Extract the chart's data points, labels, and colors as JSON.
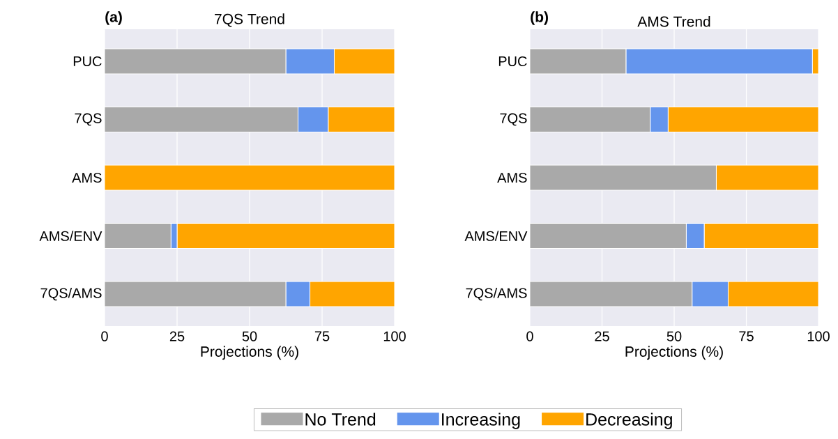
{
  "chart_data": [
    {
      "type": "bar",
      "orientation": "horizontal",
      "stacked": true,
      "title": "7QS Trend",
      "xlabel": "Projections (%)",
      "annotations": [
        "(a)"
      ],
      "categories": [
        "PUC",
        "7QS",
        "AMS",
        "AMS/ENV",
        "7QS/AMS"
      ],
      "series": [
        {
          "name": "No Trend",
          "color": "#a9a9a9",
          "values": [
            62.5,
            66.7,
            0,
            22.9,
            62.5
          ]
        },
        {
          "name": "Increasing",
          "color": "#6495ed",
          "values": [
            16.7,
            10.4,
            0,
            2.1,
            8.3
          ]
        },
        {
          "name": "Decreasing",
          "color": "#ffa500",
          "values": [
            20.8,
            22.9,
            100,
            75,
            29.2
          ]
        }
      ],
      "xlim": [
        0,
        100
      ],
      "xticks": [
        0,
        25,
        50,
        75,
        100
      ],
      "grid": "x",
      "legend": "bottom"
    },
    {
      "type": "bar",
      "orientation": "horizontal",
      "stacked": true,
      "title": "AMS Trend",
      "xlabel": "Projections (%)",
      "annotations": [
        "(b)"
      ],
      "categories": [
        "PUC",
        "7QS",
        "AMS",
        "AMS/ENV",
        "7QS/AMS"
      ],
      "series": [
        {
          "color": "#a9a9a9",
          "values": [
            33.3,
            41.7,
            64.6,
            54.2,
            56.2
          ]
        },
        {
          "color": "#6495ed",
          "values": [
            64.6,
            6.2,
            0,
            6.2,
            12.5
          ]
        },
        {
          "color": "#ffa500",
          "values": [
            2.1,
            52.1,
            35.4,
            39.6,
            31.3
          ]
        }
      ],
      "xlim": [
        0,
        100
      ],
      "xticks": [
        0,
        25,
        50,
        75,
        100
      ],
      "grid": "x"
    }
  ]
}
